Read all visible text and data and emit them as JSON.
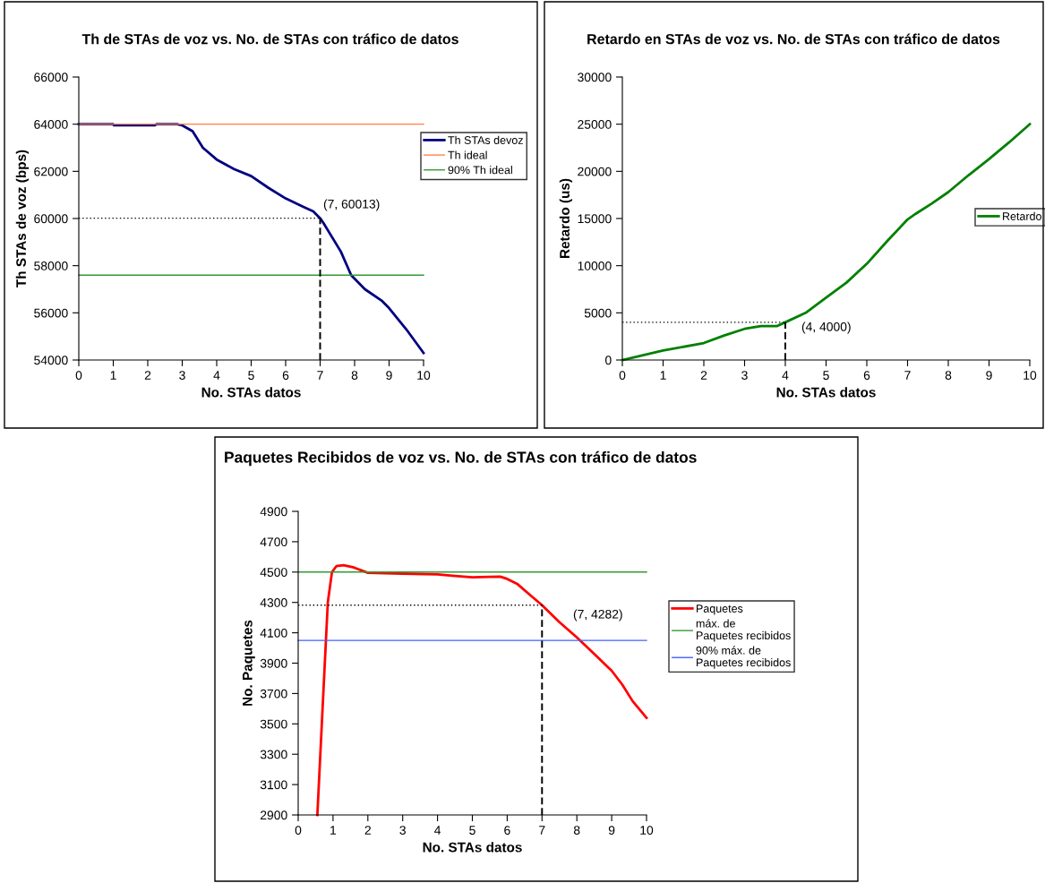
{
  "chart_data": [
    {
      "type": "line",
      "title": "Th de STAs de voz vs. No. de STAs con tráfico de datos",
      "xlabel": "No. STAs datos",
      "ylabel": "Th STAs de voz (bps)",
      "xlim": [
        0,
        10
      ],
      "ylim": [
        54000,
        66000
      ],
      "xticks": [
        0,
        1,
        2,
        3,
        4,
        5,
        6,
        7,
        8,
        9,
        10
      ],
      "yticks": [
        54000,
        56000,
        58000,
        60000,
        62000,
        64000,
        66000
      ],
      "grid": false,
      "legend": "right",
      "marker": "none",
      "annotations": [
        "(7, 60013)"
      ],
      "series": [
        {
          "name": "Th STAs devoz",
          "color": "#000080",
          "x": [
            0,
            1,
            1.02,
            2.2,
            2.25,
            2.85,
            3,
            3.3,
            3.6,
            4,
            4.5,
            5,
            5.5,
            6,
            6.5,
            6.8,
            7,
            7.1,
            7.6,
            7.9,
            8.3,
            8.8,
            9,
            9.5,
            10
          ],
          "values": [
            64000,
            64000,
            63950,
            63950,
            64000,
            64000,
            63950,
            63700,
            63000,
            62500,
            62100,
            61800,
            61300,
            60850,
            60500,
            60300,
            60013,
            59800,
            58600,
            57600,
            57000,
            56500,
            56200,
            55300,
            54300
          ]
        },
        {
          "name": "Th ideal",
          "color": "#ff8040",
          "x": [
            0,
            10
          ],
          "values": [
            64000,
            64000
          ]
        },
        {
          "name": "90% Th ideal",
          "color": "#339933",
          "x": [
            0,
            10
          ],
          "values": [
            57600,
            57600
          ]
        },
        {
          "color": "#000000",
          "line_style": "dotted",
          "x": [
            0,
            7
          ],
          "values": [
            60013,
            60013
          ]
        },
        {
          "color": "#000000",
          "line_style": "dashed",
          "x": [
            7,
            7
          ],
          "values": [
            54000,
            60013
          ]
        }
      ]
    },
    {
      "type": "line",
      "title": "Retardo en STAs de voz vs. No. de STAs con tráfico de datos",
      "xlabel": "No. STAs datos",
      "ylabel": "Retardo (us)",
      "xlim": [
        0,
        10
      ],
      "ylim": [
        0,
        30000
      ],
      "xticks": [
        0,
        1,
        2,
        3,
        4,
        5,
        6,
        7,
        8,
        9,
        10
      ],
      "yticks": [
        0,
        5000,
        10000,
        15000,
        20000,
        25000,
        30000
      ],
      "grid": false,
      "legend": "right",
      "marker": "none",
      "annotations": [
        "(4, 4000)"
      ],
      "series": [
        {
          "name": "Retardo",
          "color": "#008000",
          "x": [
            0,
            1,
            2,
            2.5,
            3,
            3.4,
            3.8,
            4,
            4.5,
            5,
            5.5,
            6,
            6.5,
            7,
            7.2,
            7.6,
            8,
            8.5,
            9,
            9.5,
            10
          ],
          "values": [
            0,
            1000,
            1800,
            2600,
            3300,
            3600,
            3600,
            4000,
            5000,
            6600,
            8200,
            10200,
            12600,
            14900,
            15500,
            16600,
            17800,
            19600,
            21300,
            23100,
            25000
          ]
        },
        {
          "color": "#000000",
          "line_style": "dotted",
          "x": [
            0,
            4
          ],
          "values": [
            4000,
            4000
          ]
        },
        {
          "color": "#000000",
          "line_style": "dashed",
          "x": [
            4,
            4
          ],
          "values": [
            0,
            4000
          ]
        }
      ]
    },
    {
      "type": "line",
      "title": "Paquetes Recibidos de voz vs. No. de STAs con tráfico de datos",
      "xlabel": "No. STAs datos",
      "ylabel": "No. Paquetes",
      "xlim": [
        0,
        10
      ],
      "ylim": [
        2900,
        4900
      ],
      "xticks": [
        0,
        1,
        2,
        3,
        4,
        5,
        6,
        7,
        8,
        9,
        10
      ],
      "yticks": [
        2900,
        3100,
        3300,
        3500,
        3700,
        3900,
        4100,
        4300,
        4500,
        4700,
        4900
      ],
      "grid": false,
      "legend": "right",
      "marker": "none",
      "annotations": [
        "(7, 4282)"
      ],
      "series": [
        {
          "name": "Paquetes",
          "color": "#ff0000",
          "x": [
            0.55,
            0.7,
            0.85,
            0.97,
            1.1,
            1.3,
            1.6,
            2,
            3,
            4,
            4.5,
            5,
            5.5,
            5.8,
            6,
            6.3,
            6.6,
            7,
            7.5,
            8,
            8.5,
            9,
            9.3,
            9.6,
            10
          ],
          "values": [
            2900,
            3600,
            4300,
            4500,
            4540,
            4545,
            4530,
            4495,
            4490,
            4485,
            4475,
            4465,
            4468,
            4470,
            4455,
            4420,
            4360,
            4282,
            4170,
            4070,
            3960,
            3850,
            3760,
            3650,
            3540
          ]
        },
        {
          "name": "máx. de\nPaquetes recibidos",
          "color": "#339933",
          "x": [
            0,
            10
          ],
          "values": [
            4500,
            4500
          ]
        },
        {
          "name": "90% máx. de\nPaquetes recibidos",
          "color": "#4060ff",
          "x": [
            0,
            10
          ],
          "values": [
            4050,
            4050
          ]
        },
        {
          "color": "#000000",
          "line_style": "dotted",
          "x": [
            0,
            7
          ],
          "values": [
            4282,
            4282
          ]
        },
        {
          "color": "#000000",
          "line_style": "dashed",
          "x": [
            7,
            7
          ],
          "values": [
            2900,
            4282
          ]
        }
      ]
    }
  ]
}
